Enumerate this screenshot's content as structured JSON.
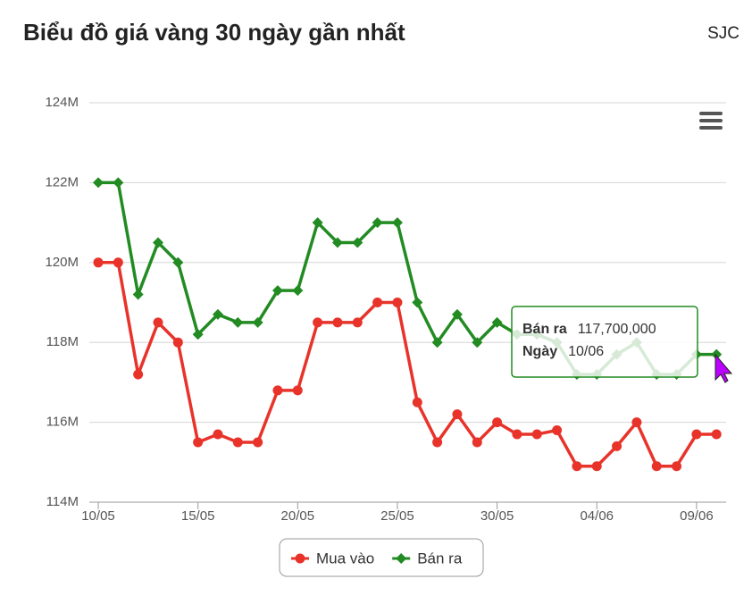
{
  "chart_data": {
    "type": "line",
    "title": "Biểu đồ giá vàng 30 ngày gần nhất",
    "subtitle": "SJC",
    "categories": [
      "10/05",
      null,
      null,
      null,
      null,
      "15/05",
      null,
      null,
      null,
      null,
      "20/05",
      null,
      null,
      null,
      null,
      "25/05",
      null,
      null,
      null,
      null,
      "30/05",
      null,
      null,
      null,
      null,
      "04/06",
      null,
      null,
      null,
      null,
      "09/06",
      null
    ],
    "series": [
      {
        "name": "Mua vào",
        "color": "#e8332a",
        "marker": "circle",
        "values": [
          120000000,
          120000000,
          117200000,
          118500000,
          118000000,
          115500000,
          115700000,
          115500000,
          115500000,
          116800000,
          116800000,
          118500000,
          118500000,
          118500000,
          119000000,
          119000000,
          116500000,
          115500000,
          116200000,
          115500000,
          116000000,
          115700000,
          115700000,
          115800000,
          114900000,
          114900000,
          115400000,
          116000000,
          114900000,
          114900000,
          115700000,
          115700000
        ]
      },
      {
        "name": "Bán ra",
        "color": "#228b22",
        "marker": "diamond",
        "values": [
          122000000,
          122000000,
          119200000,
          120500000,
          120000000,
          118200000,
          118700000,
          118500000,
          118500000,
          119300000,
          119300000,
          121000000,
          120500000,
          120500000,
          121000000,
          121000000,
          119000000,
          118000000,
          118700000,
          118000000,
          118500000,
          118200000,
          118200000,
          118000000,
          117200000,
          117200000,
          117700000,
          118000000,
          117200000,
          117200000,
          117700000,
          117700000
        ]
      }
    ],
    "ylim": [
      114000000,
      124000000
    ],
    "yticks": [
      {
        "value": 114000000,
        "label": "114M"
      },
      {
        "value": 116000000,
        "label": "116M"
      },
      {
        "value": 118000000,
        "label": "118M"
      },
      {
        "value": 120000000,
        "label": "120M"
      },
      {
        "value": 122000000,
        "label": "122M"
      },
      {
        "value": 124000000,
        "label": "124M"
      }
    ],
    "grid": true,
    "legend": "bottom",
    "tooltip": {
      "series_label": "Bán ra",
      "value": "117,700,000",
      "date_label": "Ngày",
      "date": "10/06",
      "color": "#228b22"
    }
  }
}
